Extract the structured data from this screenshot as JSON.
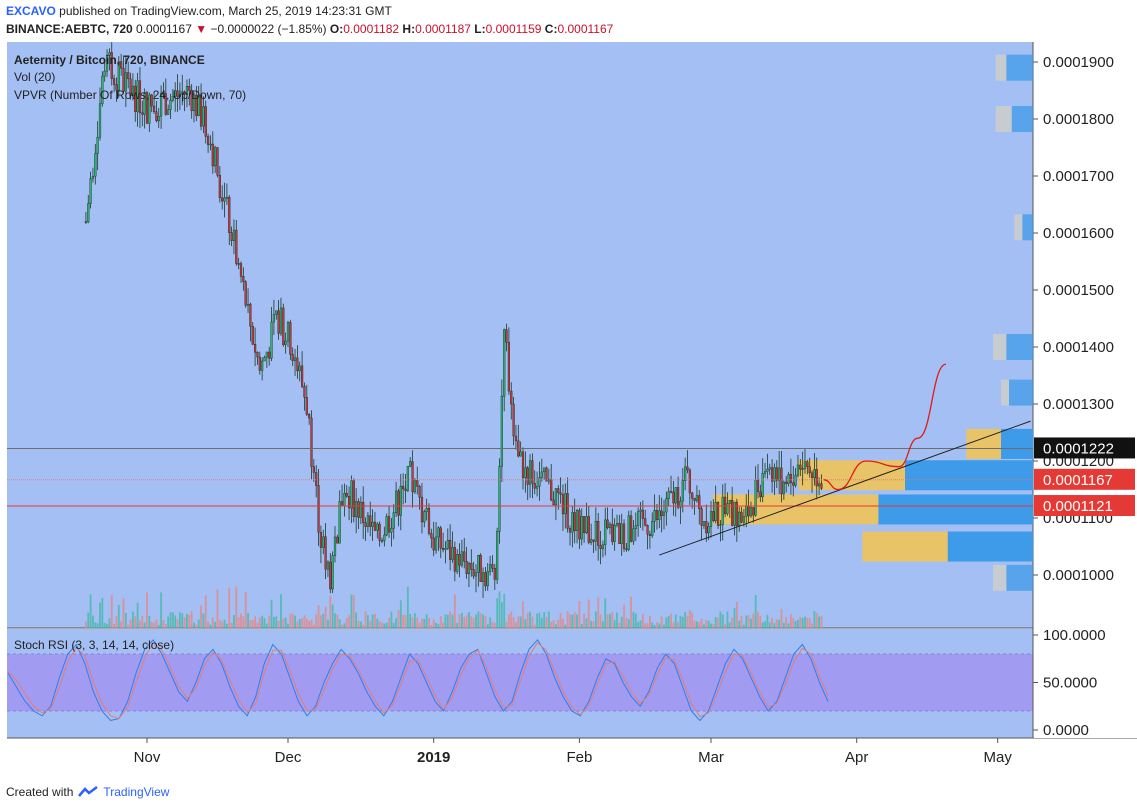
{
  "header": {
    "author": "EXCAVO",
    "published_text": "published on TradingView.com, March 25, 2019 14:23:31 GMT",
    "symbol": "BINANCE:AEBTC, 720",
    "last": "0.0001167",
    "change_arrow": "▼",
    "change": "−0.0000022 (−1.85%)",
    "ohlc_o_label": "O:",
    "ohlc_o": "0.0001182",
    "ohlc_h_label": "H:",
    "ohlc_h": "0.0001187",
    "ohlc_l_label": "L:",
    "ohlc_l": "0.0001159",
    "ohlc_c_label": "C:",
    "ohlc_c": "0.0001167"
  },
  "legend": {
    "title": "Aeternity / Bitcoin, 720, BINANCE",
    "vol": "Vol (20)",
    "vpvr": "VPVR (Number Of Rows, 24, Up/Down, 70)"
  },
  "stoch_label": "Stoch RSI (3, 3, 14, 14, close)",
  "footer": {
    "created_with": "Created with",
    "brand": "TradingView"
  },
  "colors": {
    "bg_main": "#a4bff3",
    "bg_rsi": "#a4bff3",
    "rsi_band": "#a29bf2",
    "up": "#27b574",
    "down": "#c2373d",
    "vpvr_up": "#3d9be9",
    "vpvr_down": "#e8c368",
    "vpvr_gray": "#c7ccd1",
    "hline_red": "#e53935",
    "hline_gray": "#6d6d6d",
    "forecast": "#e01b1b"
  },
  "chart_data": [
    {
      "type": "candlestick",
      "title": "Aeternity / Bitcoin, 720, BINANCE",
      "x_ticks": [
        "Nov",
        "Dec",
        "2019",
        "Feb",
        "Mar",
        "Apr",
        "May"
      ],
      "y_ticks": [
        "0.0001900",
        "0.0001800",
        "0.0001700",
        "0.0001600",
        "0.0001500",
        "0.0001400",
        "0.0001300",
        "0.0001200",
        "0.0001100",
        "0.0001000"
      ],
      "ylim": [
        9.4e-05,
        0.000193
      ],
      "price_tags": {
        "gray_line": "0.0001222",
        "last": "0.0001167",
        "red_line": "0.0001121"
      },
      "anchors": [
        {
          "date": "Oct 19",
          "price": 0.000162
        },
        {
          "date": "Oct 23",
          "price": 0.00019
        },
        {
          "date": "Nov 1",
          "price": 0.000182
        },
        {
          "date": "Nov 10",
          "price": 0.000185
        },
        {
          "date": "Nov 14",
          "price": 0.000178
        },
        {
          "date": "Nov 19",
          "price": 0.00016
        },
        {
          "date": "Nov 25",
          "price": 0.000136
        },
        {
          "date": "Nov 29",
          "price": 0.000145
        },
        {
          "date": "Dec 2",
          "price": 0.00014
        },
        {
          "date": "Dec 5",
          "price": 0.00013
        },
        {
          "date": "Dec 8",
          "price": 0.000106
        },
        {
          "date": "Dec 10",
          "price": 0.0001
        },
        {
          "date": "Dec 13",
          "price": 0.000116
        },
        {
          "date": "Dec 20",
          "price": 0.000106
        },
        {
          "date": "Dec 27",
          "price": 0.000117
        },
        {
          "date": "Jan 1",
          "price": 0.000106
        },
        {
          "date": "Jan 10",
          "price": 0.000101
        },
        {
          "date": "Jan 14",
          "price": 0.0001
        },
        {
          "date": "Jan 16",
          "price": 0.000142
        },
        {
          "date": "Jan 19",
          "price": 0.00012
        },
        {
          "date": "Jan 27",
          "price": 0.000114
        },
        {
          "date": "Feb 1",
          "price": 0.000108
        },
        {
          "date": "Feb 10",
          "price": 0.000107
        },
        {
          "date": "Feb 18",
          "price": 0.00011
        },
        {
          "date": "Feb 24",
          "price": 0.000117
        },
        {
          "date": "Feb 27",
          "price": 0.00011
        },
        {
          "date": "Mar 5",
          "price": 0.000111
        },
        {
          "date": "Mar 8",
          "price": 0.000109
        },
        {
          "date": "Mar 13",
          "price": 0.00012
        },
        {
          "date": "Mar 17",
          "price": 0.000115
        },
        {
          "date": "Mar 20",
          "price": 0.00012
        },
        {
          "date": "Mar 25",
          "price": 0.0001167
        }
      ],
      "trendline": [
        {
          "date": "Feb 18",
          "price": 0.0001035
        },
        {
          "date": "May 8",
          "price": 0.000127
        }
      ],
      "forecast_path": [
        {
          "date": "Mar 25",
          "price": 0.0001167
        },
        {
          "date": "Mar 28",
          "price": 0.000115
        },
        {
          "date": "Apr 3",
          "price": 0.00012
        },
        {
          "date": "Apr 10",
          "price": 0.000119
        },
        {
          "date": "Apr 14",
          "price": 0.000124
        },
        {
          "date": "Apr 20",
          "price": 0.000137
        }
      ],
      "vpvr_rows": [
        {
          "price": 0.000189,
          "up": 0.1,
          "down": 0.02,
          "gray": 0.04
        },
        {
          "price": 0.00018,
          "up": 0.08,
          "down": 0.02,
          "gray": 0.06
        },
        {
          "price": 0.000161,
          "up": 0.04,
          "down": 0.01,
          "gray": 0.03
        },
        {
          "price": 0.00014,
          "up": 0.1,
          "down": 0.04,
          "gray": 0.05
        },
        {
          "price": 0.000132,
          "up": 0.09,
          "down": 0.02,
          "gray": 0.03
        },
        {
          "price": 0.000123,
          "up": 0.12,
          "down": 0.13,
          "gray": 0
        },
        {
          "price": 0.0001175,
          "up": 0.48,
          "down": 0.4,
          "gray": 0
        },
        {
          "price": 0.0001115,
          "up": 0.58,
          "down": 0.62,
          "gray": 0
        },
        {
          "price": 0.000105,
          "up": 0.32,
          "down": 0.32,
          "gray": 0
        },
        {
          "price": 9.95e-05,
          "up": 0.1,
          "down": 0.05,
          "gray": 0.05
        }
      ]
    },
    {
      "type": "line",
      "title": "Stoch RSI (3, 3, 14, 14, close)",
      "y_ticks": [
        "100.0000",
        "50.0000",
        "0.0000"
      ],
      "ylim": [
        0,
        100
      ],
      "band": [
        20,
        80
      ],
      "series": [
        {
          "color": "#2f7fe8",
          "values": [
            60,
            45,
            30,
            20,
            15,
            25,
            55,
            80,
            90,
            70,
            40,
            20,
            10,
            12,
            30,
            60,
            85,
            95,
            80,
            60,
            40,
            30,
            50,
            75,
            85,
            70,
            45,
            25,
            15,
            35,
            70,
            90,
            80,
            55,
            30,
            15,
            25,
            50,
            70,
            85,
            75,
            60,
            40,
            25,
            15,
            30,
            55,
            80,
            70,
            50,
            30,
            20,
            40,
            65,
            80,
            85,
            60,
            35,
            20,
            30,
            60,
            85,
            95,
            80,
            55,
            35,
            20,
            15,
            30,
            55,
            75,
            70,
            50,
            35,
            25,
            40,
            65,
            80,
            70,
            45,
            20,
            10,
            20,
            45,
            70,
            85,
            75,
            55,
            35,
            20,
            30,
            55,
            80,
            90,
            75,
            50,
            30
          ]
        },
        {
          "color": "#e67c73",
          "values": [
            62,
            52,
            38,
            25,
            18,
            22,
            45,
            72,
            87,
            78,
            50,
            28,
            15,
            12,
            24,
            50,
            76,
            92,
            84,
            66,
            46,
            33,
            44,
            68,
            82,
            74,
            52,
            32,
            18,
            28,
            60,
            84,
            84,
            62,
            38,
            20,
            22,
            42,
            64,
            80,
            78,
            64,
            46,
            30,
            18,
            26,
            48,
            72,
            74,
            56,
            36,
            22,
            34,
            58,
            76,
            84,
            66,
            42,
            24,
            26,
            52,
            78,
            92,
            84,
            62,
            40,
            24,
            16,
            26,
            48,
            70,
            72,
            56,
            40,
            28,
            36,
            58,
            76,
            74,
            52,
            28,
            14,
            18,
            38,
            62,
            80,
            78,
            60,
            40,
            24,
            28,
            48,
            72,
            86,
            80,
            56,
            36
          ]
        }
      ]
    }
  ]
}
